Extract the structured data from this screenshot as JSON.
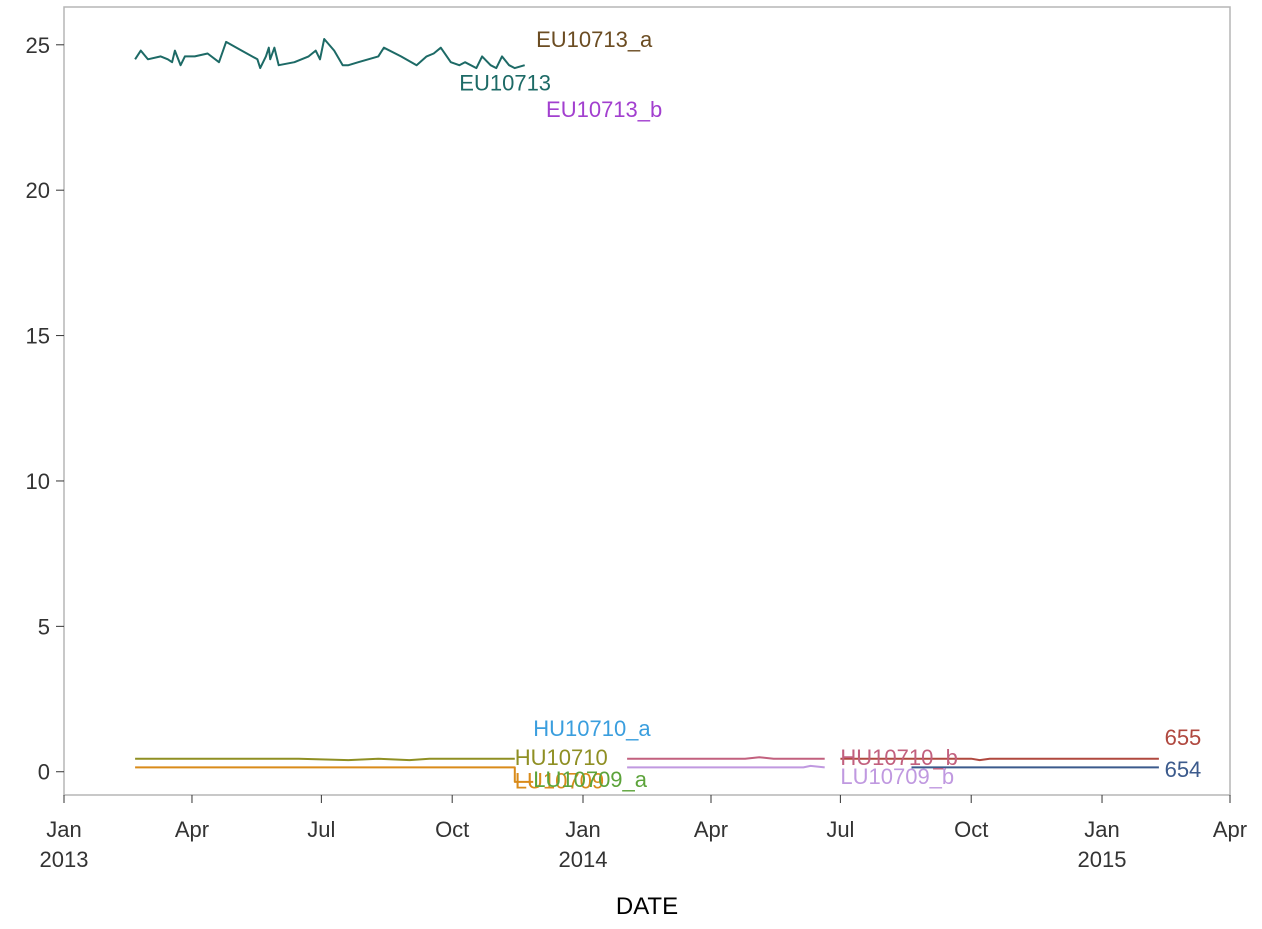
{
  "chart_data": {
    "type": "line",
    "title": "",
    "xlabel": "DATE",
    "ylabel": "",
    "x_axis": {
      "type": "date",
      "range": [
        "2013-01-01",
        "2015-04-01"
      ],
      "ticks": [
        {
          "date": "2013-01-01",
          "label": "Jan",
          "year": "2013"
        },
        {
          "date": "2013-04-01",
          "label": "Apr",
          "year": ""
        },
        {
          "date": "2013-07-01",
          "label": "Jul",
          "year": ""
        },
        {
          "date": "2013-10-01",
          "label": "Oct",
          "year": ""
        },
        {
          "date": "2014-01-01",
          "label": "Jan",
          "year": "2014"
        },
        {
          "date": "2014-04-01",
          "label": "Apr",
          "year": ""
        },
        {
          "date": "2014-07-01",
          "label": "Jul",
          "year": ""
        },
        {
          "date": "2014-10-01",
          "label": "Oct",
          "year": ""
        },
        {
          "date": "2015-01-01",
          "label": "Jan",
          "year": "2015"
        },
        {
          "date": "2015-04-01",
          "label": "Apr",
          "year": ""
        }
      ]
    },
    "y_axis": {
      "range": [
        -0.8,
        26.3
      ],
      "ticks": [
        0,
        5,
        10,
        15,
        20,
        25
      ]
    },
    "grid": false,
    "legend": "none (labels at line ends)",
    "series": [
      {
        "name": "EU10713",
        "color": "#1d6a66",
        "label_date": "2013-10-06",
        "label_value": 23.7,
        "points": [
          [
            "2013-02-20",
            24.5
          ],
          [
            "2013-02-24",
            24.8
          ],
          [
            "2013-03-01",
            24.5
          ],
          [
            "2013-03-10",
            24.6
          ],
          [
            "2013-03-15",
            24.5
          ],
          [
            "2013-03-18",
            24.4
          ],
          [
            "2013-03-20",
            24.8
          ],
          [
            "2013-03-24",
            24.3
          ],
          [
            "2013-03-27",
            24.6
          ],
          [
            "2013-04-03",
            24.6
          ],
          [
            "2013-04-12",
            24.7
          ],
          [
            "2013-04-20",
            24.4
          ],
          [
            "2013-04-25",
            25.1
          ],
          [
            "2013-05-06",
            24.8
          ],
          [
            "2013-05-17",
            24.5
          ],
          [
            "2013-05-19",
            24.2
          ],
          [
            "2013-05-23",
            24.6
          ],
          [
            "2013-05-25",
            24.9
          ],
          [
            "2013-05-26",
            24.5
          ],
          [
            "2013-05-29",
            24.9
          ],
          [
            "2013-06-01",
            24.3
          ],
          [
            "2013-06-12",
            24.4
          ],
          [
            "2013-06-22",
            24.6
          ],
          [
            "2013-06-27",
            24.8
          ],
          [
            "2013-06-30",
            24.5
          ],
          [
            "2013-07-03",
            25.2
          ],
          [
            "2013-07-10",
            24.8
          ],
          [
            "2013-07-16",
            24.3
          ],
          [
            "2013-07-20",
            24.3
          ],
          [
            "2013-07-27",
            24.4
          ],
          [
            "2013-08-10",
            24.6
          ],
          [
            "2013-08-14",
            24.9
          ],
          [
            "2013-08-26",
            24.6
          ],
          [
            "2013-09-06",
            24.3
          ],
          [
            "2013-09-13",
            24.6
          ],
          [
            "2013-09-18",
            24.7
          ],
          [
            "2013-09-23",
            24.9
          ],
          [
            "2013-09-30",
            24.4
          ],
          [
            "2013-10-06",
            24.3
          ],
          [
            "2013-10-10",
            24.4
          ],
          [
            "2013-10-18",
            24.2
          ],
          [
            "2013-10-22",
            24.6
          ],
          [
            "2013-10-28",
            24.3
          ],
          [
            "2013-11-01",
            24.2
          ],
          [
            "2013-11-05",
            24.6
          ],
          [
            "2013-11-10",
            24.3
          ],
          [
            "2013-11-14",
            24.2
          ],
          [
            "2013-11-21",
            24.3
          ]
        ]
      },
      {
        "name": "EU10713_a",
        "color": "#6b4c22",
        "label_date": "2013-11-29",
        "label_value": 25.2,
        "points": []
      },
      {
        "name": "EU10713_b",
        "color": "#a23fcf",
        "label_date": "2013-12-06",
        "label_value": 22.8,
        "points": []
      },
      {
        "name": "HU10710",
        "color": "#8f8f23",
        "label_date": "2013-11-14",
        "label_value": 0.5,
        "points": [
          [
            "2013-02-20",
            0.45
          ],
          [
            "2013-04-15",
            0.45
          ],
          [
            "2013-06-15",
            0.45
          ],
          [
            "2013-07-20",
            0.4
          ],
          [
            "2013-08-10",
            0.45
          ],
          [
            "2013-09-01",
            0.4
          ],
          [
            "2013-09-15",
            0.45
          ],
          [
            "2013-10-15",
            0.45
          ],
          [
            "2013-11-14",
            0.45
          ]
        ]
      },
      {
        "name": "LU10709",
        "color": "#d98b1a",
        "label_date": "2013-11-14",
        "label_value": -0.3,
        "points": [
          [
            "2013-02-20",
            0.15
          ],
          [
            "2013-11-14",
            0.15
          ],
          [
            "2013-11-14",
            -0.35
          ],
          [
            "2013-11-27",
            -0.35
          ]
        ]
      },
      {
        "name": "LU10709_a",
        "color": "#5ca33a",
        "label_date": "2013-11-27",
        "label_value": -0.25,
        "points": []
      },
      {
        "name": "HU10710_a",
        "color": "#3a9ede",
        "label_date": "2013-11-27",
        "label_value": 1.5,
        "points": []
      },
      {
        "name": "HU10710_b",
        "color": "#c2607e",
        "label_date": "2014-07-01",
        "label_value": 0.5,
        "points": [
          [
            "2014-02-01",
            0.45
          ],
          [
            "2014-04-25",
            0.45
          ],
          [
            "2014-05-05",
            0.5
          ],
          [
            "2014-05-15",
            0.45
          ],
          [
            "2014-06-20",
            0.45
          ]
        ]
      },
      {
        "name": "LU10709_b",
        "color": "#c099e0",
        "label_date": "2014-07-01",
        "label_value": -0.15,
        "points": [
          [
            "2014-02-01",
            0.15
          ],
          [
            "2014-06-05",
            0.15
          ],
          [
            "2014-06-10",
            0.2
          ],
          [
            "2014-06-20",
            0.15
          ]
        ]
      },
      {
        "name": "655",
        "color": "#b0483f",
        "label_date": "2015-02-14",
        "label_value": 1.2,
        "points": [
          [
            "2014-07-01",
            0.45
          ],
          [
            "2014-10-01",
            0.45
          ],
          [
            "2014-10-07",
            0.4
          ],
          [
            "2014-10-14",
            0.45
          ],
          [
            "2015-02-10",
            0.45
          ]
        ]
      },
      {
        "name": "654",
        "color": "#3b5a8c",
        "label_date": "2015-02-14",
        "label_value": 0.1,
        "points": [
          [
            "2014-08-20",
            0.15
          ],
          [
            "2015-02-10",
            0.15
          ]
        ]
      }
    ]
  }
}
